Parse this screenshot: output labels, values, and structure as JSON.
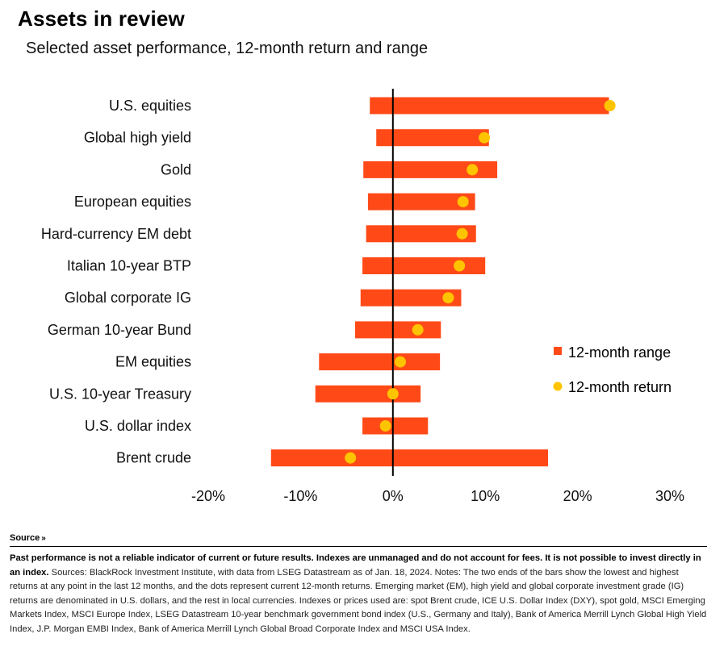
{
  "header": {
    "title": "Assets in review",
    "subtitle": "Selected asset performance,   12-month return and range"
  },
  "chart_data": {
    "type": "bar",
    "orientation": "horizontal",
    "categories": [
      "U.S. equities",
      "Global high yield",
      "Gold",
      "European equities",
      "Hard-currency EM debt",
      "Italian 10-year BTP",
      "Global corporate IG",
      "German 10-year Bund",
      "EM equities",
      "U.S. 10-year Treasury",
      "U.S. dollar index",
      "Brent crude"
    ],
    "series": [
      {
        "name": "12-month range",
        "low": [
          -2.5,
          -1.8,
          -3.2,
          -2.7,
          -2.9,
          -3.3,
          -3.5,
          -4.1,
          -8.0,
          -8.4,
          -3.3,
          -13.2
        ],
        "high": [
          23.4,
          10.4,
          11.3,
          8.9,
          9.0,
          10.0,
          7.4,
          5.2,
          5.1,
          3.0,
          3.8,
          16.8
        ]
      },
      {
        "name": "12-month return",
        "values": [
          23.5,
          9.9,
          8.6,
          7.6,
          7.5,
          7.2,
          6.0,
          2.7,
          0.8,
          0.0,
          -0.8,
          -4.6
        ]
      }
    ],
    "x_ticks": [
      "-20%",
      "-10%",
      "0%",
      "10%",
      "20%",
      "30%"
    ],
    "xlim": [
      -20,
      30
    ],
    "unit": "%",
    "grid": false,
    "legend_position": "right",
    "colors": {
      "range": "#ff4a17",
      "return": "#ffc400",
      "zero_line": "#000000"
    }
  },
  "source": {
    "label": "Source",
    "disclaimer": "Past performance is not a reliable indicator of current or future results. Indexes are unmanaged and do not account for fees. It is not possible to invest directly in an index.",
    "notes": "Sources: BlackRock Investment Institute, with data from LSEG Datastream as of Jan. 18, 2024. Notes: The two ends of the bars show the lowest and highest returns at any point in the last 12 months, and the dots represent current 12-month returns. Emerging market (EM), high yield and global corporate investment grade (IG) returns are denominated in U.S. dollars, and the rest in local currencies. Indexes or prices used are: spot Brent crude, ICE U.S. Dollar Index (DXY), spot gold, MSCI Emerging Markets Index, MSCI Europe Index, LSEG Datastream 10-year benchmark government bond index (U.S., Germany and Italy), Bank of America Merrill Lynch Global High Yield Index, J.P. Morgan EMBI Index, Bank of America Merrill Lynch Global Broad Corporate Index and MSCI USA Index."
  }
}
